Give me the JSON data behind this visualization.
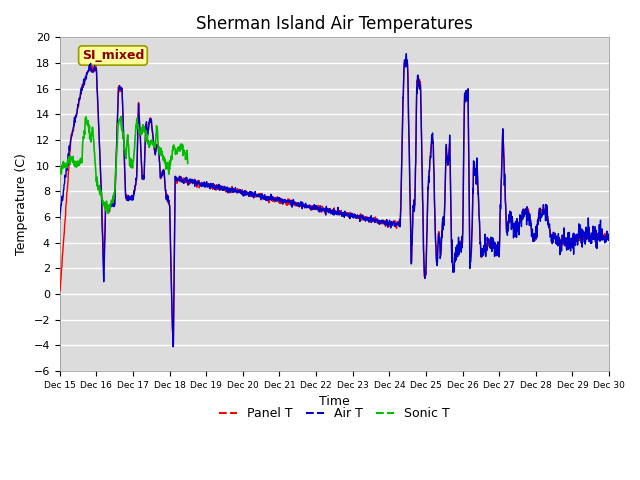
{
  "title": "Sherman Island Air Temperatures",
  "xlabel": "Time",
  "ylabel": "Temperature (C)",
  "ylim": [
    -6,
    20
  ],
  "yticks": [
    -6,
    -4,
    -2,
    0,
    2,
    4,
    6,
    8,
    10,
    12,
    14,
    16,
    18,
    20
  ],
  "x_labels": [
    "Dec 15",
    "Dec 16",
    "Dec 17",
    "Dec 18",
    "Dec 19",
    "Dec 20",
    "Dec 21",
    "Dec 22",
    "Dec 23",
    "Dec 24",
    "Dec 25",
    "Dec 26",
    "Dec 27",
    "Dec 28",
    "Dec 29",
    "Dec 30"
  ],
  "annotation_text": "SI_mixed",
  "annotation_color": "#8B0000",
  "annotation_bg": "#FFFF99",
  "background_color": "#DCDCDC",
  "panel_color": "#FF0000",
  "air_color": "#0000CC",
  "sonic_color": "#00BB00",
  "legend_labels": [
    "Panel T",
    "Air T",
    "Sonic T"
  ],
  "title_fontsize": 12,
  "axis_fontsize": 9,
  "tick_fontsize": 8
}
